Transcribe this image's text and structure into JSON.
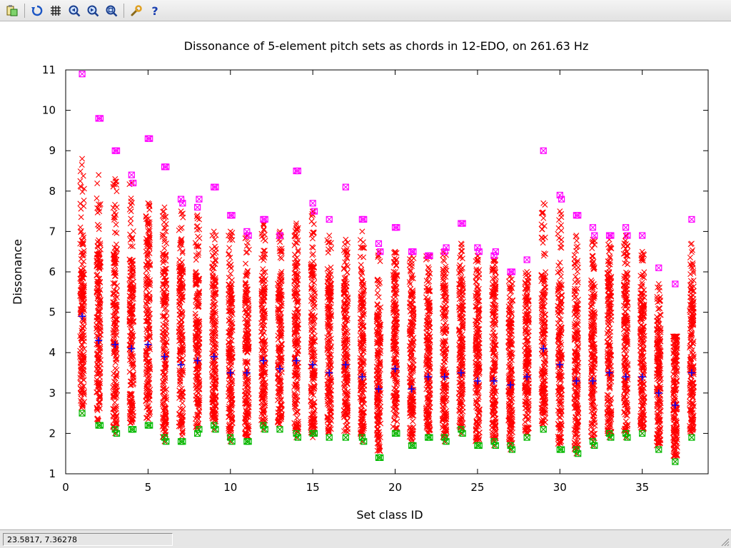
{
  "toolbar": {
    "buttons": [
      {
        "name": "copy-clipboard-icon",
        "tooltip": ""
      },
      {
        "name": "replot-icon",
        "tooltip": ""
      },
      {
        "name": "grid-icon",
        "tooltip": ""
      },
      {
        "name": "zoom-previous-icon",
        "tooltip": ""
      },
      {
        "name": "zoom-next-icon",
        "tooltip": ""
      },
      {
        "name": "unzoom-icon",
        "tooltip": ""
      },
      {
        "name": "options-wrench-icon",
        "tooltip": ""
      },
      {
        "name": "help-icon",
        "tooltip": ""
      }
    ]
  },
  "status": {
    "coords": "23.5817,  7.36278"
  },
  "colors": {
    "red": "#ff0000",
    "magenta": "#ff00ff",
    "green": "#00bb00",
    "blue": "#0000ff"
  },
  "chart_data": {
    "type": "scatter",
    "title": "Dissonance of 5-element pitch sets as chords in 12-EDO, on 261.63 Hz",
    "xlabel": "Set class ID",
    "ylabel": "Dissonance",
    "xlim": [
      0,
      39
    ],
    "ylim": [
      1,
      11
    ],
    "xticks": [
      0,
      5,
      10,
      15,
      20,
      25,
      30,
      35
    ],
    "yticks": [
      1,
      2,
      3,
      4,
      5,
      6,
      7,
      8,
      9,
      10,
      11
    ],
    "grid": false,
    "legend": "none",
    "series": [
      {
        "marker": "x",
        "color": "#ff0000",
        "x": [
          1,
          2,
          3,
          4,
          5,
          6,
          7,
          8,
          9,
          10,
          11,
          12,
          13,
          14,
          15,
          16,
          17,
          18,
          19,
          20,
          21,
          22,
          23,
          24,
          25,
          26,
          27,
          28,
          29,
          30,
          31,
          32,
          33,
          34,
          35,
          36,
          37,
          38
        ],
        "y_min": [
          2.5,
          2.2,
          2.0,
          2.1,
          2.2,
          1.8,
          1.8,
          2.0,
          2.1,
          1.8,
          1.8,
          2.1,
          2.1,
          1.9,
          1.9,
          1.9,
          1.9,
          1.8,
          1.4,
          2.0,
          1.7,
          1.9,
          1.8,
          2.0,
          1.7,
          1.7,
          1.6,
          1.9,
          2.1,
          1.6,
          1.5,
          1.7,
          1.9,
          1.9,
          2.0,
          1.6,
          1.3,
          1.9
        ],
        "y_max": [
          8.8,
          8.4,
          8.3,
          8.2,
          7.7,
          7.6,
          7.5,
          7.4,
          7.0,
          7.0,
          6.9,
          7.2,
          7.0,
          7.2,
          7.5,
          6.9,
          6.8,
          7.0,
          6.5,
          6.5,
          6.4,
          6.4,
          6.5,
          6.7,
          6.4,
          6.3,
          5.9,
          6.0,
          7.7,
          7.5,
          6.9,
          6.8,
          6.8,
          6.9,
          6.5,
          5.7,
          4.4,
          6.7
        ],
        "dense_min": [
          2.6,
          2.3,
          2.1,
          2.2,
          2.3,
          1.9,
          1.9,
          2.1,
          2.2,
          1.9,
          1.9,
          2.2,
          2.2,
          2.0,
          2.0,
          2.0,
          2.0,
          1.9,
          1.5,
          2.1,
          1.8,
          2.0,
          1.9,
          2.1,
          1.8,
          1.8,
          1.7,
          2.0,
          2.2,
          1.7,
          1.6,
          1.8,
          2.0,
          2.0,
          2.1,
          1.7,
          1.4,
          2.0
        ],
        "dense_max": [
          6.8,
          6.6,
          6.7,
          6.3,
          7.0,
          6.5,
          6.2,
          6.0,
          6.0,
          5.7,
          5.6,
          6.0,
          5.9,
          6.4,
          6.2,
          5.8,
          5.9,
          5.7,
          5.0,
          5.9,
          5.5,
          5.6,
          5.7,
          5.8,
          5.6,
          5.7,
          5.1,
          5.4,
          6.0,
          5.8,
          5.6,
          5.8,
          5.9,
          6.0,
          5.5,
          4.8,
          4.4,
          5.6
        ]
      },
      {
        "marker": "boxed-x",
        "color": "#ff00ff",
        "role": "maximum",
        "x": [
          1,
          2,
          2.1,
          3,
          3.1,
          4,
          4.1,
          5,
          5.1,
          6,
          6.1,
          7,
          7.1,
          8,
          8.1,
          9,
          9.1,
          10,
          10.1,
          11,
          11.1,
          12,
          12.1,
          13,
          14,
          14.1,
          15,
          15.1,
          16,
          17,
          18,
          18.1,
          19,
          19.1,
          20,
          20.1,
          21,
          21.1,
          22,
          22.1,
          23,
          23.1,
          24,
          24.1,
          25,
          25.1,
          26,
          26.1,
          27,
          27.1,
          28,
          29,
          30,
          30.1,
          31,
          31.1,
          32,
          32.1,
          33,
          33.1,
          34,
          34.1,
          35,
          36,
          37,
          38
        ],
        "y": [
          10.9,
          9.8,
          9.8,
          9.0,
          9.0,
          8.4,
          8.2,
          9.3,
          9.3,
          8.6,
          8.6,
          7.8,
          7.7,
          7.6,
          7.8,
          8.1,
          8.1,
          7.4,
          7.4,
          7.0,
          6.9,
          7.3,
          7.3,
          6.9,
          8.5,
          8.5,
          7.7,
          7.5,
          7.3,
          8.1,
          7.3,
          7.3,
          6.7,
          6.5,
          7.1,
          7.1,
          6.5,
          6.5,
          6.4,
          6.4,
          6.5,
          6.6,
          7.2,
          7.2,
          6.6,
          6.5,
          6.4,
          6.5,
          6.0,
          6.0,
          6.3,
          9.0,
          7.9,
          7.8,
          7.4,
          7.4,
          7.1,
          6.9,
          6.9,
          6.9,
          7.1,
          6.9,
          6.9,
          6.1,
          5.7,
          7.3
        ]
      },
      {
        "marker": "boxed-x",
        "color": "#00bb00",
        "role": "minimum",
        "x": [
          1,
          2,
          2.1,
          3,
          3.1,
          4,
          4.1,
          5,
          5.1,
          6,
          6.1,
          7,
          7.1,
          8,
          8.1,
          9,
          9.1,
          10,
          10.1,
          11,
          11.1,
          12,
          12.1,
          13,
          14,
          14.1,
          15,
          15.1,
          16,
          17,
          18,
          18.1,
          19,
          19.1,
          20,
          20.1,
          21,
          21.1,
          22,
          22.1,
          23,
          23.1,
          24,
          24.1,
          25,
          25.1,
          26,
          26.1,
          27,
          27.1,
          28,
          29,
          30,
          30.1,
          31,
          31.1,
          32,
          32.1,
          33,
          33.1,
          34,
          34.1,
          35,
          36,
          37,
          38
        ],
        "y": [
          2.5,
          2.2,
          2.2,
          2.1,
          2.0,
          2.1,
          2.1,
          2.2,
          2.2,
          1.9,
          1.8,
          1.8,
          1.8,
          2.0,
          2.1,
          2.2,
          2.1,
          1.9,
          1.8,
          1.8,
          1.8,
          2.2,
          2.1,
          2.1,
          2.0,
          1.9,
          2.0,
          2.0,
          1.9,
          1.9,
          1.9,
          1.8,
          1.4,
          1.4,
          2.0,
          2.0,
          1.7,
          1.7,
          1.9,
          1.9,
          1.9,
          1.8,
          2.1,
          2.0,
          1.7,
          1.7,
          1.8,
          1.7,
          1.7,
          1.6,
          1.9,
          2.1,
          1.6,
          1.6,
          1.6,
          1.5,
          1.8,
          1.7,
          2.0,
          1.9,
          2.0,
          1.9,
          2.0,
          1.6,
          1.3,
          1.9
        ]
      },
      {
        "marker": "plus",
        "color": "#0000ff",
        "role": "mean",
        "x": [
          1,
          2,
          3,
          4,
          5,
          6,
          7,
          8,
          9,
          10,
          11,
          12,
          13,
          14,
          15,
          16,
          17,
          18,
          19,
          20,
          21,
          22,
          23,
          24,
          25,
          26,
          27,
          28,
          29,
          30,
          31,
          32,
          33,
          34,
          35,
          36,
          37,
          38
        ],
        "y": [
          4.9,
          4.3,
          4.2,
          4.1,
          4.2,
          3.9,
          3.7,
          3.8,
          3.9,
          3.5,
          3.5,
          3.8,
          3.6,
          3.8,
          3.7,
          3.5,
          3.7,
          3.4,
          3.1,
          3.6,
          3.1,
          3.4,
          3.4,
          3.5,
          3.3,
          3.3,
          3.2,
          3.4,
          4.1,
          3.7,
          3.3,
          3.3,
          3.5,
          3.4,
          3.4,
          3.0,
          2.7,
          3.5
        ]
      }
    ]
  }
}
